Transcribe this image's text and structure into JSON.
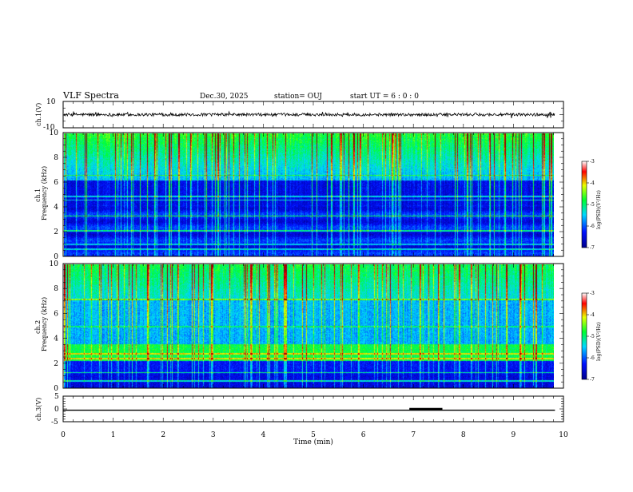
{
  "header": {
    "title": "VLF Spectra",
    "date": "Dec.30, 2025",
    "station": "station= OUJ",
    "start": "start  UT  =   6  : 0   : 0"
  },
  "chart_data": [
    {
      "type": "line",
      "panel": "ch1-waveform",
      "ylabel": "ch.1(V)",
      "ylim": [
        -10,
        10
      ],
      "yticks": [
        10,
        -10
      ],
      "baseline": 0,
      "xlim": [
        0,
        9.83
      ]
    },
    {
      "type": "heatmap",
      "panel": "ch1-spectrogram",
      "ylabel": "ch.1\nFrequency (kHz)",
      "ylabel_line1": "ch.1",
      "ylabel_line2": "Frequency (kHz)",
      "ylim": [
        0,
        10
      ],
      "yticks": [
        0,
        2,
        4,
        6,
        8,
        10
      ],
      "xlim": [
        0,
        9.83
      ],
      "colorbar": {
        "label": "log(PSD)(V²/Hz)",
        "range": [
          -7,
          -3
        ],
        "ticks": [
          -3,
          -4,
          -5,
          -6,
          -7
        ]
      }
    },
    {
      "type": "heatmap",
      "panel": "ch2-spectrogram",
      "ylabel": "ch.2\nFrequency (kHz)",
      "ylabel_line1": "ch.2",
      "ylabel_line2": "Frequency (kHz)",
      "ylim": [
        0,
        10
      ],
      "yticks": [
        0,
        2,
        4,
        6,
        8,
        10
      ],
      "xlim": [
        0,
        9.83
      ],
      "colorbar": {
        "label": "log(PSD)(V²/Hz)",
        "range": [
          -7,
          -3
        ],
        "ticks": [
          -3,
          -4,
          -5,
          -6,
          -7
        ]
      }
    },
    {
      "type": "line",
      "panel": "ch3-signal",
      "ylabel": "ch.3(V)",
      "ylim": [
        -5,
        5
      ],
      "yticks": [
        5,
        0,
        -5
      ],
      "baseline": -0.5,
      "step": {
        "x_start": 6.92,
        "x_end": 7.58,
        "value": 0.0
      },
      "xlim": [
        0,
        9.83
      ]
    }
  ],
  "xaxis": {
    "label": "Time (min)",
    "range": [
      0,
      10
    ],
    "ticks": [
      "0",
      "1",
      "2",
      "3",
      "4",
      "5",
      "6",
      "7",
      "8",
      "9",
      "10"
    ]
  },
  "colors": {
    "deep_blue": "#00008c",
    "blue": "#0010ff",
    "cyan": "#00d8ff",
    "green": "#00ff30",
    "yellow": "#e8ff00",
    "red": "#ff0000",
    "dark_red": "#8c0000"
  }
}
